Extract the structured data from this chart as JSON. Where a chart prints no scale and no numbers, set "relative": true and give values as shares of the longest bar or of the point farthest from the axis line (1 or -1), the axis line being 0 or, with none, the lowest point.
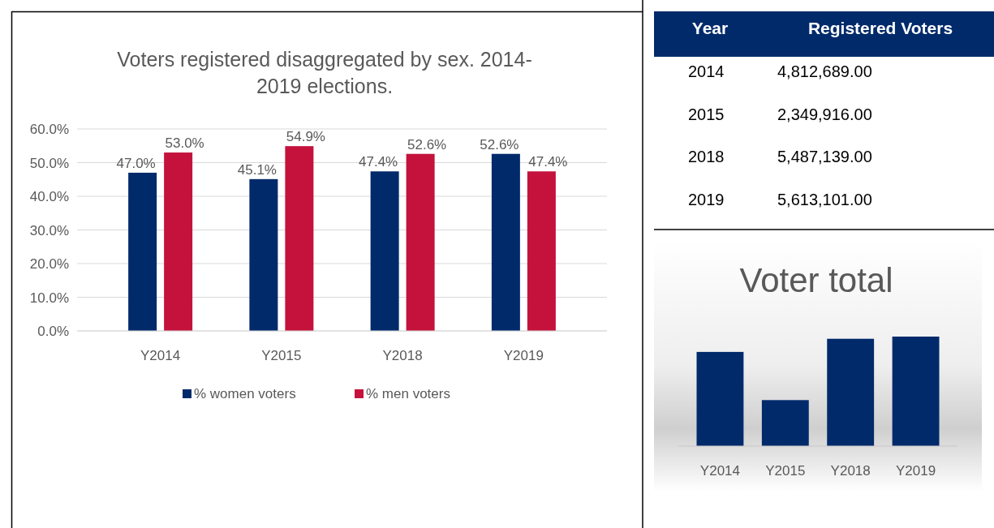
{
  "chart_data": [
    {
      "type": "bar",
      "title": "Voters registered disaggregated by sex. 2014-2019 elections.",
      "categories": [
        "Y2014",
        "Y2015",
        "Y2018",
        "Y2019"
      ],
      "series": [
        {
          "name": "% women voters",
          "color": "#012a6b",
          "values": [
            47.0,
            45.1,
            47.4,
            52.6
          ],
          "value_labels": [
            "47.0%",
            "45.1%",
            "47.4%",
            "52.6%"
          ]
        },
        {
          "name": "% men voters",
          "color": "#c4123d",
          "values": [
            53.0,
            54.9,
            52.6,
            47.4
          ],
          "value_labels": [
            "53.0%",
            "54.9%",
            "52.6%",
            "47.4%"
          ]
        }
      ],
      "ylim": [
        0,
        60
      ],
      "yticks": [
        {
          "value": 0,
          "label": "0.0%"
        },
        {
          "value": 10,
          "label": "10.0%"
        },
        {
          "value": 20,
          "label": "20.0%"
        },
        {
          "value": 30,
          "label": "30.0%"
        },
        {
          "value": 40,
          "label": "40.0%"
        },
        {
          "value": 50,
          "label": "50.0%"
        },
        {
          "value": 60,
          "label": "60.0%"
        }
      ],
      "grid": "y",
      "legend": "bottom"
    },
    {
      "type": "other",
      "xlabel": "Year",
      "ylabel": "Registered Voters",
      "categories": [
        "2014",
        "2015",
        "2018",
        "2019"
      ],
      "values": [
        4812689,
        2349916,
        5487139,
        5613101
      ],
      "value_labels": [
        "4,812,689.00",
        "2,349,916.00",
        "5,487,139.00",
        "5,613,101.00"
      ],
      "color": "#012a6b"
    },
    {
      "type": "bar",
      "title": "Voter total",
      "categories": [
        "Y2014",
        "Y2015",
        "Y2018",
        "Y2019"
      ],
      "values": [
        0.86,
        0.42,
        0.98,
        1
      ],
      "color": "#012a6b",
      "relative": true
    }
  ]
}
